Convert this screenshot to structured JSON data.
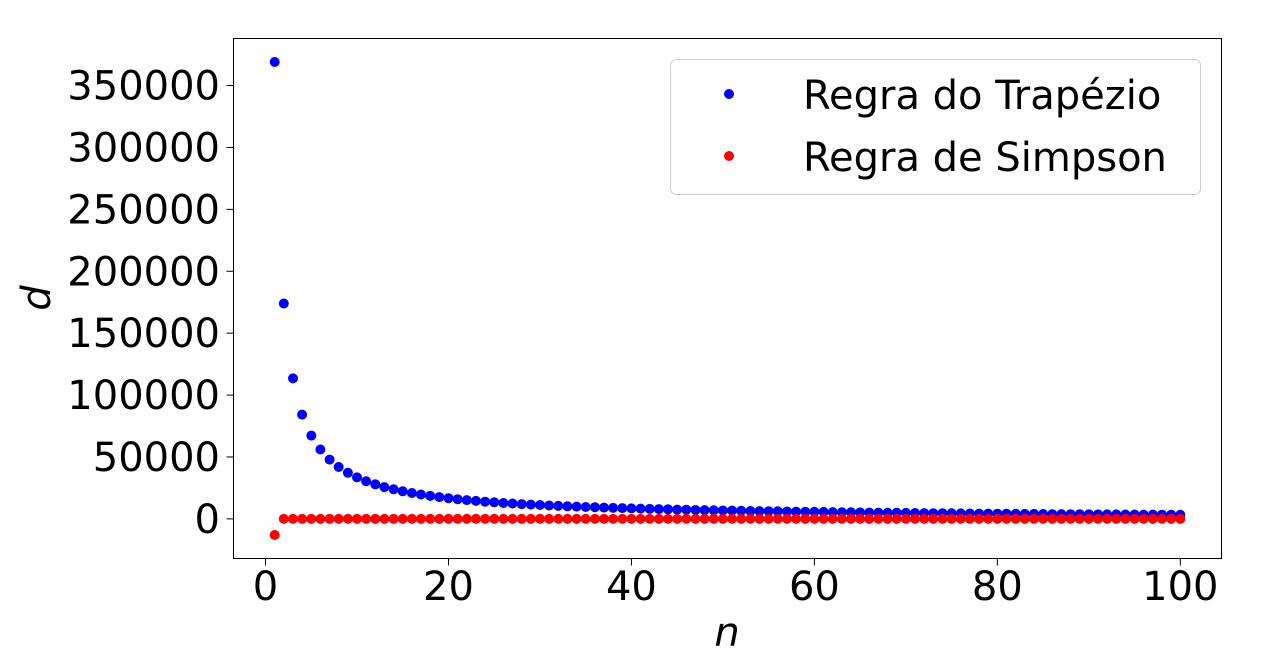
{
  "chart_data": {
    "type": "scatter",
    "title": "",
    "xlabel": "n",
    "ylabel": "d",
    "xlim": [
      -3.5,
      104.5
    ],
    "ylim": [
      -32000,
      388000
    ],
    "xticks": [
      0,
      20,
      40,
      60,
      80,
      100
    ],
    "xtick_labels": [
      "0",
      "20",
      "40",
      "60",
      "80",
      "100"
    ],
    "yticks": [
      0,
      50000,
      100000,
      150000,
      200000,
      250000,
      300000,
      350000
    ],
    "ytick_labels": [
      "0",
      "50000",
      "100000",
      "150000",
      "200000",
      "250000",
      "300000",
      "350000"
    ],
    "grid": false,
    "legend_position": "top-right",
    "x": [
      1,
      2,
      3,
      4,
      5,
      6,
      7,
      8,
      9,
      10,
      11,
      12,
      13,
      14,
      15,
      16,
      17,
      18,
      19,
      20,
      21,
      22,
      23,
      24,
      25,
      26,
      27,
      28,
      29,
      30,
      31,
      32,
      33,
      34,
      35,
      36,
      37,
      38,
      39,
      40,
      41,
      42,
      43,
      44,
      45,
      46,
      47,
      48,
      49,
      50,
      51,
      52,
      53,
      54,
      55,
      56,
      57,
      58,
      59,
      60,
      61,
      62,
      63,
      64,
      65,
      66,
      67,
      68,
      69,
      70,
      71,
      72,
      73,
      74,
      75,
      76,
      77,
      78,
      79,
      80,
      81,
      82,
      83,
      84,
      85,
      86,
      87,
      88,
      89,
      90,
      91,
      92,
      93,
      94,
      95,
      96,
      97,
      98,
      99,
      100
    ],
    "series": [
      {
        "name": "Regra do Trapézio",
        "color": "#0000ff",
        "values": [
          369000,
          174000,
          113500,
          84200,
          67300,
          56000,
          47900,
          41900,
          37200,
          33500,
          30400,
          27900,
          25700,
          23900,
          22300,
          20900,
          19700,
          18600,
          17600,
          16700,
          15900,
          15200,
          14500,
          13900,
          13400,
          12800,
          12400,
          11900,
          11500,
          11200,
          10800,
          10500,
          10200,
          9900,
          9600,
          9400,
          9100,
          8900,
          8700,
          8500,
          8300,
          8100,
          7900,
          7700,
          7500,
          7400,
          7200,
          7100,
          6900,
          6800,
          6700,
          6500,
          6400,
          6300,
          6200,
          6100,
          6000,
          5900,
          5800,
          5700,
          5600,
          5500,
          5400,
          5300,
          5200,
          5100,
          5050,
          4950,
          4900,
          4800,
          4750,
          4650,
          4600,
          4550,
          4500,
          4400,
          4350,
          4300,
          4250,
          4200,
          4150,
          4100,
          4050,
          4000,
          3950,
          3900,
          3850,
          3800,
          3750,
          3700,
          3650,
          3620,
          3580,
          3550,
          3500,
          3470,
          3430,
          3400,
          3360,
          3330
        ]
      },
      {
        "name": "Regra de Simpson",
        "color": "#ff0000",
        "values": [
          -13000,
          0,
          0,
          0,
          0,
          0,
          0,
          0,
          0,
          0,
          0,
          0,
          0,
          0,
          0,
          0,
          0,
          0,
          0,
          0,
          0,
          0,
          0,
          0,
          0,
          0,
          0,
          0,
          0,
          0,
          0,
          0,
          0,
          0,
          0,
          0,
          0,
          0,
          0,
          0,
          0,
          0,
          0,
          0,
          0,
          0,
          0,
          0,
          0,
          0,
          0,
          0,
          0,
          0,
          0,
          0,
          0,
          0,
          0,
          0,
          0,
          0,
          0,
          0,
          0,
          0,
          0,
          0,
          0,
          0,
          0,
          0,
          0,
          0,
          0,
          0,
          0,
          0,
          0,
          0,
          0,
          0,
          0,
          0,
          0,
          0,
          0,
          0,
          0,
          0,
          0,
          0,
          0,
          0,
          0,
          0,
          0,
          0,
          0,
          0
        ]
      }
    ]
  }
}
